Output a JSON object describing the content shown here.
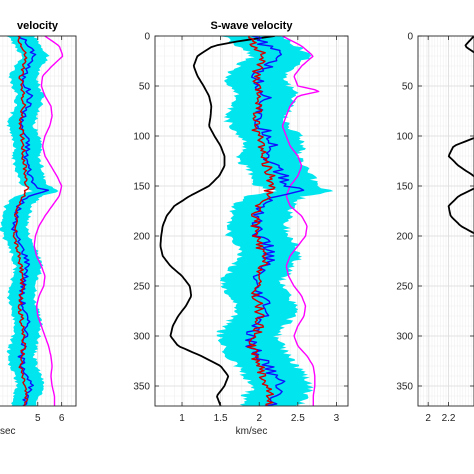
{
  "chart_data": [
    {
      "type": "line",
      "title": "velocity",
      "xlabel": "sec",
      "ylabel": "",
      "x_ticks": [
        5,
        6
      ],
      "y_ticks": [],
      "xlim": [
        3.0,
        6.6
      ],
      "ylim": [
        0,
        370
      ],
      "y_reversed": true,
      "grid": true,
      "band_color": "#00e5ee",
      "series": [
        {
          "key": "magenta",
          "color": "#ff00ff",
          "depth": [
            0,
            10,
            20,
            30,
            40,
            50,
            60,
            70,
            80,
            90,
            100,
            110,
            120,
            130,
            140,
            150,
            160,
            170,
            180,
            190,
            200,
            210,
            220,
            230,
            240,
            250,
            260,
            270,
            280,
            290,
            300,
            310,
            320,
            330,
            340,
            350,
            360,
            370
          ],
          "value": [
            5.3,
            5.9,
            6.05,
            5.6,
            5.2,
            5.15,
            5.3,
            5.55,
            5.6,
            5.5,
            5.3,
            5.2,
            5.3,
            5.55,
            5.8,
            6.0,
            5.9,
            5.6,
            5.3,
            5.05,
            4.9,
            4.85,
            4.95,
            5.15,
            5.3,
            5.25,
            5.05,
            4.95,
            5.0,
            5.15,
            5.3,
            5.45,
            5.55,
            5.6,
            5.55,
            5.6,
            5.7,
            5.7
          ]
        },
        {
          "key": "blue",
          "color": "#1010ff",
          "depth": [
            0,
            10,
            20,
            30,
            40,
            50,
            60,
            70,
            80,
            90,
            100,
            110,
            120,
            130,
            140,
            150,
            155,
            160,
            170,
            180,
            190,
            200,
            210,
            220,
            230,
            240,
            250,
            260,
            270,
            280,
            290,
            300,
            310,
            320,
            330,
            340,
            350,
            360,
            370
          ],
          "value": [
            4.3,
            4.6,
            4.9,
            4.6,
            4.4,
            4.5,
            4.7,
            4.6,
            4.4,
            4.3,
            4.5,
            4.6,
            4.5,
            4.6,
            4.7,
            4.9,
            5.4,
            4.6,
            4.2,
            4.1,
            4.0,
            4.1,
            4.3,
            4.5,
            4.6,
            4.5,
            4.4,
            4.3,
            4.4,
            4.5,
            4.6,
            4.5,
            4.4,
            4.3,
            4.4,
            4.6,
            4.7,
            4.5,
            4.4
          ]
        },
        {
          "key": "red",
          "color": "#d40000",
          "depth": [
            0,
            10,
            20,
            30,
            40,
            50,
            60,
            70,
            80,
            90,
            100,
            110,
            120,
            130,
            140,
            150,
            160,
            170,
            180,
            190,
            200,
            210,
            220,
            230,
            240,
            250,
            260,
            270,
            280,
            290,
            300,
            310,
            320,
            330,
            340,
            350,
            360,
            370
          ],
          "value": [
            4.2,
            4.3,
            4.5,
            4.4,
            4.3,
            4.3,
            4.4,
            4.4,
            4.3,
            4.3,
            4.35,
            4.4,
            4.4,
            4.45,
            4.5,
            4.55,
            4.4,
            4.2,
            4.1,
            4.05,
            4.05,
            4.1,
            4.2,
            4.3,
            4.35,
            4.35,
            4.3,
            4.25,
            4.3,
            4.35,
            4.4,
            4.4,
            4.35,
            4.3,
            4.35,
            4.45,
            4.5,
            4.45
          ]
        }
      ]
    },
    {
      "type": "line",
      "title": "S-wave velocity",
      "xlabel": "km/sec",
      "ylabel": "",
      "x_ticks": [
        1,
        1.5,
        2,
        2.5,
        3
      ],
      "x_tick_labels": [
        "1",
        "1.5",
        "2",
        "2.5",
        "3"
      ],
      "y_ticks": [
        0,
        50,
        100,
        150,
        200,
        250,
        300,
        350
      ],
      "xlim": [
        0.65,
        3.15
      ],
      "ylim": [
        0,
        370
      ],
      "y_reversed": true,
      "grid": true,
      "band_color": "#00e5ee",
      "series": [
        {
          "key": "black",
          "color": "#000000",
          "depth": [
            0,
            5,
            10,
            20,
            30,
            40,
            50,
            60,
            70,
            80,
            90,
            100,
            110,
            120,
            130,
            140,
            150,
            160,
            170,
            180,
            190,
            200,
            210,
            220,
            230,
            240,
            250,
            260,
            270,
            280,
            290,
            300,
            310,
            320,
            330,
            340,
            350,
            360,
            370
          ],
          "value": [
            2.2,
            1.75,
            1.4,
            1.2,
            1.15,
            1.2,
            1.28,
            1.35,
            1.38,
            1.37,
            1.35,
            1.42,
            1.5,
            1.55,
            1.55,
            1.48,
            1.35,
            1.1,
            0.9,
            0.8,
            0.75,
            0.73,
            0.72,
            0.75,
            0.85,
            1.0,
            1.1,
            1.12,
            1.05,
            0.95,
            0.88,
            0.85,
            0.95,
            1.25,
            1.5,
            1.6,
            1.55,
            1.45,
            1.5
          ]
        },
        {
          "key": "magenta",
          "color": "#ff00ff",
          "depth": [
            0,
            10,
            20,
            30,
            40,
            50,
            55,
            60,
            70,
            80,
            90,
            100,
            110,
            120,
            130,
            140,
            150,
            160,
            170,
            180,
            190,
            200,
            210,
            220,
            230,
            240,
            250,
            260,
            270,
            280,
            290,
            300,
            310,
            320,
            330,
            340,
            350,
            360,
            370
          ],
          "value": [
            2.3,
            2.55,
            2.7,
            2.55,
            2.45,
            2.5,
            2.8,
            2.5,
            2.4,
            2.35,
            2.3,
            2.35,
            2.4,
            2.5,
            2.55,
            2.5,
            2.4,
            2.35,
            2.4,
            2.55,
            2.62,
            2.6,
            2.5,
            2.4,
            2.35,
            2.38,
            2.45,
            2.55,
            2.6,
            2.58,
            2.5,
            2.45,
            2.5,
            2.62,
            2.7,
            2.72,
            2.72,
            2.7,
            2.7
          ]
        },
        {
          "key": "blue",
          "color": "#1010ff",
          "depth": [
            0,
            10,
            20,
            30,
            40,
            50,
            60,
            70,
            80,
            90,
            100,
            110,
            120,
            130,
            140,
            150,
            155,
            160,
            170,
            180,
            190,
            200,
            210,
            220,
            230,
            240,
            250,
            260,
            270,
            280,
            290,
            300,
            310,
            320,
            330,
            340,
            350,
            360,
            370
          ],
          "value": [
            1.9,
            2.1,
            2.3,
            2.1,
            1.95,
            2.0,
            2.1,
            2.05,
            1.95,
            2.0,
            2.15,
            2.2,
            2.1,
            2.2,
            2.3,
            2.35,
            2.6,
            2.2,
            2.05,
            2.0,
            1.95,
            2.0,
            2.1,
            2.15,
            2.05,
            1.95,
            1.9,
            2.0,
            2.1,
            2.05,
            1.95,
            1.85,
            1.9,
            2.0,
            2.1,
            2.2,
            2.3,
            2.2,
            2.15
          ]
        },
        {
          "key": "red",
          "color": "#d40000",
          "depth": [
            0,
            10,
            20,
            30,
            40,
            50,
            60,
            70,
            80,
            90,
            100,
            110,
            120,
            130,
            140,
            150,
            160,
            170,
            180,
            190,
            200,
            210,
            220,
            230,
            240,
            250,
            260,
            270,
            280,
            290,
            300,
            310,
            320,
            330,
            340,
            350,
            360,
            370
          ],
          "value": [
            1.85,
            1.95,
            2.05,
            2.0,
            1.95,
            1.95,
            2.0,
            2.0,
            1.95,
            1.95,
            2.0,
            2.05,
            2.05,
            2.1,
            2.15,
            2.15,
            2.1,
            2.0,
            1.95,
            1.95,
            1.95,
            2.0,
            2.05,
            2.05,
            2.0,
            1.95,
            1.95,
            2.0,
            2.0,
            2.0,
            1.95,
            1.9,
            1.95,
            2.0,
            2.05,
            2.1,
            2.15,
            2.1,
            2.1
          ]
        }
      ]
    },
    {
      "type": "line",
      "title": "",
      "xlabel": "",
      "ylabel": "",
      "x_ticks": [
        2,
        2.2
      ],
      "x_tick_labels": [
        "2",
        "2.2"
      ],
      "y_ticks": [
        0,
        50,
        100,
        150,
        200,
        250,
        300,
        350
      ],
      "xlim": [
        1.9,
        2.45
      ],
      "ylim": [
        0,
        370
      ],
      "y_reversed": true,
      "grid": true,
      "series": [
        {
          "key": "black",
          "color": "#000000",
          "depth": [
            0,
            10,
            20,
            30,
            40,
            50,
            60,
            70,
            80,
            90,
            100,
            110,
            120,
            130,
            140,
            150,
            160,
            170,
            180,
            190,
            200,
            210,
            220,
            230,
            240,
            250,
            260,
            270,
            280,
            290,
            300,
            310,
            320,
            330,
            340,
            350,
            360,
            370
          ],
          "value": [
            2.45,
            2.36,
            2.5,
            2.6,
            2.6,
            2.6,
            2.6,
            2.6,
            2.6,
            2.6,
            2.5,
            2.25,
            2.2,
            2.3,
            2.45,
            2.5,
            2.3,
            2.2,
            2.22,
            2.32,
            2.5,
            2.6,
            2.6,
            2.6,
            2.6,
            2.6,
            2.6,
            2.6,
            2.6,
            2.6,
            2.6,
            2.6,
            2.6,
            2.6,
            2.6,
            2.6,
            2.6,
            2.6
          ]
        }
      ]
    }
  ]
}
